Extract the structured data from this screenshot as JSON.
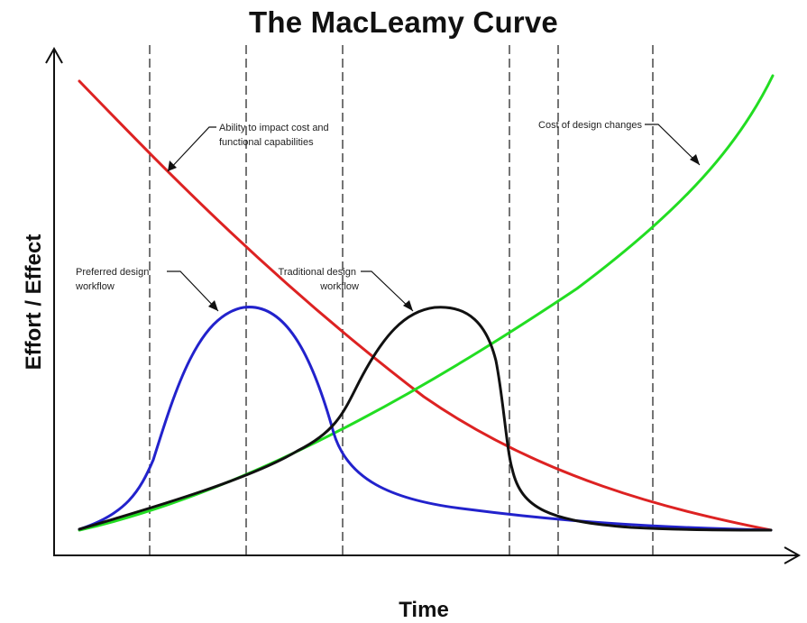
{
  "title": "The MacLeamy Curve",
  "axes": {
    "x_label": "Time",
    "y_label": "Effort / Effect"
  },
  "annotations": {
    "ability": [
      "Ability to impact cost and",
      "functional capabilities"
    ],
    "cost": [
      "Cost of design changes"
    ],
    "preferred": [
      "Preferred design",
      "workflow"
    ],
    "traditional": [
      "Traditional design",
      "workflow"
    ]
  },
  "colors": {
    "ability_curve": "#dd2222",
    "cost_curve": "#22dd22",
    "preferred_curve": "#2222cc",
    "traditional_curve": "#111111",
    "axis": "#111111",
    "phase_lines": "#3a3a3a"
  },
  "phase_divider_count": 6
}
